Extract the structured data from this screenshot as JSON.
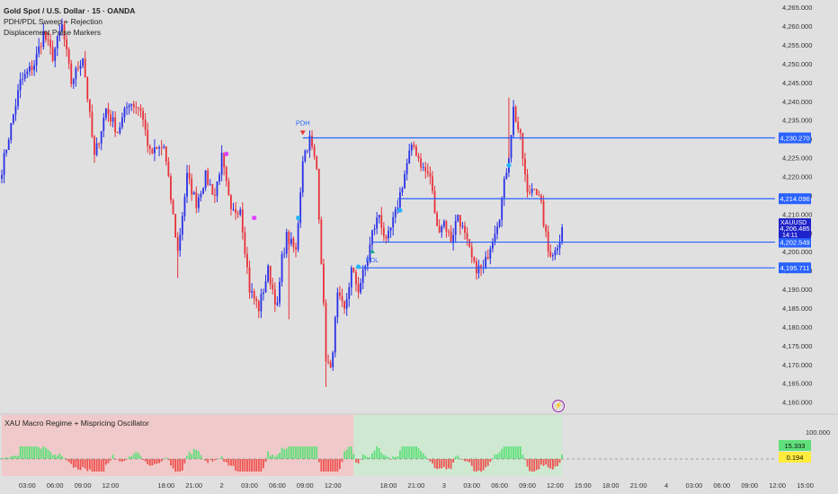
{
  "legend": {
    "title": "Gold Spot / U.S. Dollar · 15 · OANDA",
    "indicator1": "PDH/PDL Sweep + Rejection",
    "indicator2": "Displacement Pulse Markers"
  },
  "oscillator": {
    "title": "XAU Macro Regime + Mispricing Oscillator",
    "scale_top": "100.000",
    "value_green": "15.333",
    "value_yellow": "0.194"
  },
  "colors": {
    "bull": "#2930e6",
    "bear": "#e8313a",
    "level_line": "#2962ff",
    "pdh_marker": "#e8313a",
    "pdl_marker": "#26a69a",
    "pulse_magenta": "#e040fb",
    "pulse_cyan": "#29b6f6",
    "hist_green": "#5ee07a",
    "hist_red": "#ef5350",
    "zone_red": "#f0caca",
    "zone_green": "#cfe8d2"
  },
  "levels": [
    {
      "label": "PDH",
      "value": 4230.27,
      "tag": "4,230.270"
    },
    {
      "label": "",
      "value": 4214.096,
      "tag": "4,214.096"
    },
    {
      "label": "",
      "value": 4202.549,
      "tag": "4,202.549"
    },
    {
      "label": "PDL",
      "value": 4195.711,
      "tag": "4,195.711"
    }
  ],
  "current_price": {
    "symbol": "XAUUSD",
    "price": "4,206.485",
    "countdown": "14:11",
    "value": 4206.485
  },
  "chart_data": {
    "type": "candlestick",
    "title": "Gold Spot / U.S. Dollar · 15 · OANDA",
    "y_ticks": [
      4265,
      4260,
      4255,
      4250,
      4245,
      4240,
      4235,
      4230,
      4225,
      4220,
      4215,
      4210,
      4205,
      4200,
      4195,
      4190,
      4185,
      4180,
      4175,
      4170,
      4165,
      4160
    ],
    "y_tick_labels": [
      "4,265.000",
      "4,260.000",
      "4,255.000",
      "4,250.000",
      "4,245.000",
      "4,240.000",
      "4,235.000",
      "4,230.000",
      "4,225.000",
      "4,220.000",
      "4,215.000",
      "4,210.000",
      "4,205.000",
      "4,200.000",
      "4,195.000",
      "4,190.000",
      "4,185.000",
      "4,180.000",
      "4,175.000",
      "4,170.000",
      "4,165.000",
      "4,160.000"
    ],
    "ylim": [
      4158,
      4266
    ],
    "x_labels": [
      "03:00",
      "06:00",
      "09:00",
      "12:00",
      "18:00",
      "21:00",
      "2",
      "03:00",
      "06:00",
      "09:00",
      "12:00",
      "18:00",
      "21:00",
      "3",
      "03:00",
      "06:00",
      "09:00",
      "12:00",
      "15:00",
      "18:00",
      "21:00",
      "4",
      "03:00",
      "06:00",
      "09:00",
      "12:00",
      "15:00"
    ],
    "x_label_index": [
      11,
      23,
      35,
      47,
      71,
      83,
      95,
      107,
      119,
      131,
      143,
      167,
      179,
      191,
      203,
      215,
      227,
      239,
      251,
      263,
      275,
      287,
      299,
      311,
      323,
      335,
      347
    ],
    "total_bars": 350,
    "series": [
      {
        "name": "",
        "anchors": [
          [
            0,
            4222
          ],
          [
            8,
            4245
          ],
          [
            14,
            4250
          ],
          [
            18,
            4258
          ],
          [
            22,
            4252
          ],
          [
            26,
            4260
          ],
          [
            30,
            4245
          ],
          [
            35,
            4252
          ],
          [
            40,
            4225
          ],
          [
            45,
            4238
          ],
          [
            50,
            4232
          ],
          [
            55,
            4240
          ],
          [
            60,
            4238
          ],
          [
            64,
            4226
          ],
          [
            70,
            4228
          ],
          [
            76,
            4200
          ],
          [
            80,
            4220
          ],
          [
            84,
            4213
          ],
          [
            88,
            4220
          ],
          [
            92,
            4215
          ],
          [
            95,
            4225
          ],
          [
            99,
            4210
          ],
          [
            103,
            4212
          ],
          [
            107,
            4190
          ],
          [
            111,
            4185
          ],
          [
            115,
            4195
          ],
          [
            119,
            4185
          ],
          [
            121,
            4198
          ],
          [
            123,
            4204
          ],
          [
            127,
            4200
          ],
          [
            130,
            4225
          ],
          [
            133,
            4230
          ],
          [
            136,
            4222
          ],
          [
            138,
            4198
          ],
          [
            140,
            4172
          ],
          [
            142,
            4168
          ],
          [
            145,
            4188
          ],
          [
            148,
            4184
          ],
          [
            151,
            4195
          ],
          [
            154,
            4190
          ],
          [
            158,
            4198
          ],
          [
            160,
            4205
          ],
          [
            163,
            4210
          ],
          [
            166,
            4202
          ],
          [
            170,
            4210
          ],
          [
            173,
            4218
          ],
          [
            176,
            4226
          ],
          [
            178,
            4228
          ],
          [
            182,
            4222
          ],
          [
            185,
            4220
          ],
          [
            188,
            4206
          ],
          [
            191,
            4208
          ],
          [
            194,
            4203
          ],
          [
            197,
            4210
          ],
          [
            200,
            4204
          ],
          [
            204,
            4196
          ],
          [
            208,
            4195
          ],
          [
            211,
            4202
          ],
          [
            215,
            4210
          ],
          [
            219,
            4226
          ],
          [
            221,
            4238
          ],
          [
            224,
            4230
          ],
          [
            227,
            4215
          ],
          [
            230,
            4218
          ],
          [
            233,
            4212
          ],
          [
            236,
            4200
          ],
          [
            239,
            4200
          ],
          [
            242,
            4206
          ]
        ]
      }
    ],
    "markers": [
      {
        "type": "pulse",
        "color": "magenta",
        "bar": 97,
        "price": 4226
      },
      {
        "type": "pulse",
        "color": "magenta",
        "bar": 109,
        "price": 4209
      },
      {
        "type": "pulse",
        "color": "cyan",
        "bar": 128,
        "price": 4209
      },
      {
        "type": "pulse",
        "color": "cyan",
        "bar": 154,
        "price": 4196
      },
      {
        "type": "pulse",
        "color": "cyan",
        "bar": 172,
        "price": 4211
      },
      {
        "type": "pulse",
        "color": "cyan",
        "bar": 219,
        "price": 4223
      },
      {
        "type": "pdh",
        "bar": 130,
        "price": 4231.5,
        "label": "PDH"
      },
      {
        "type": "pdl",
        "bar": 160,
        "price": 4200.3,
        "label": "PDL"
      }
    ],
    "level_lines": [
      {
        "value": 4230.27,
        "from_bar": 130
      },
      {
        "value": 4214.096,
        "from_bar": 171
      },
      {
        "value": 4202.549,
        "from_bar": 160
      },
      {
        "value": 4195.711,
        "from_bar": 153
      }
    ]
  }
}
